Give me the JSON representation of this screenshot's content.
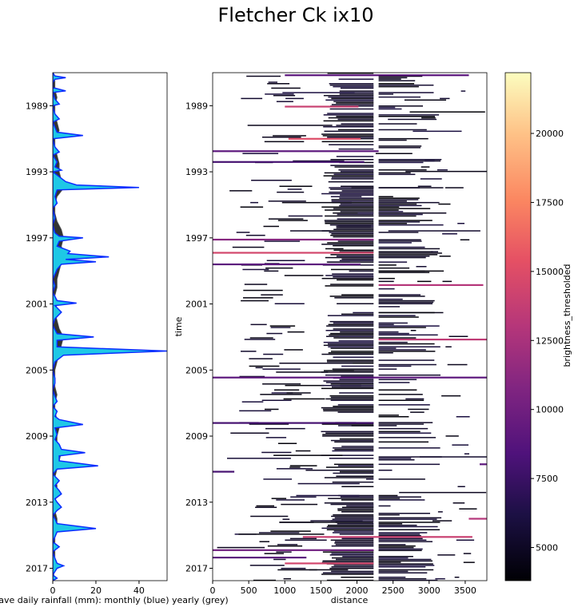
{
  "title": "Fletcher Ck ix10",
  "chart_data": [
    {
      "type": "area",
      "panel": "rainfall",
      "xlabel": "ave daily rainfall (mm): monthly (blue) yearly (grey)",
      "xlim": [
        0,
        53
      ],
      "xticks": [
        0,
        20,
        40
      ],
      "ylim": [
        1987.0,
        2017.75
      ],
      "yticks": [
        1989,
        1993,
        1997,
        2001,
        2005,
        2009,
        2013,
        2017
      ],
      "series": [
        {
          "name": "monthly",
          "color": "#0a2cff",
          "fill": "#1ec8e6",
          "points": [
            [
              1987.0,
              0
            ],
            [
              1987.2,
              1
            ],
            [
              1987.3,
              6
            ],
            [
              1987.4,
              1
            ],
            [
              1987.6,
              0
            ],
            [
              1987.9,
              0
            ],
            [
              1988.1,
              6
            ],
            [
              1988.2,
              0
            ],
            [
              1988.6,
              1
            ],
            [
              1988.9,
              3
            ],
            [
              1989.0,
              0
            ],
            [
              1989.5,
              1
            ],
            [
              1989.8,
              3
            ],
            [
              1990.0,
              0
            ],
            [
              1990.6,
              2
            ],
            [
              1990.8,
              14
            ],
            [
              1991.0,
              0
            ],
            [
              1991.5,
              1
            ],
            [
              1991.8,
              3
            ],
            [
              1992.0,
              0
            ],
            [
              1992.4,
              2
            ],
            [
              1992.7,
              1
            ],
            [
              1992.9,
              4
            ],
            [
              1993.0,
              0
            ],
            [
              1993.3,
              3
            ],
            [
              1993.6,
              6
            ],
            [
              1993.8,
              11
            ],
            [
              1993.95,
              40
            ],
            [
              1994.1,
              2
            ],
            [
              1994.5,
              1
            ],
            [
              1994.9,
              2
            ],
            [
              1995.2,
              0
            ],
            [
              1995.8,
              1
            ],
            [
              1996.2,
              0
            ],
            [
              1996.7,
              1
            ],
            [
              1996.9,
              3
            ],
            [
              1997.0,
              14
            ],
            [
              1997.2,
              3
            ],
            [
              1997.5,
              2
            ],
            [
              1997.8,
              8
            ],
            [
              1997.95,
              7
            ],
            [
              1998.15,
              26
            ],
            [
              1998.3,
              6
            ],
            [
              1998.45,
              20
            ],
            [
              1998.6,
              4
            ],
            [
              1998.9,
              2
            ],
            [
              1999.5,
              0
            ],
            [
              1999.9,
              1
            ],
            [
              2000.3,
              0
            ],
            [
              2000.8,
              2
            ],
            [
              2000.95,
              11
            ],
            [
              2001.1,
              1
            ],
            [
              2001.5,
              4
            ],
            [
              2001.9,
              1
            ],
            [
              2002.3,
              0
            ],
            [
              2002.8,
              2
            ],
            [
              2003.0,
              19
            ],
            [
              2003.2,
              2
            ],
            [
              2003.6,
              2
            ],
            [
              2003.85,
              53
            ],
            [
              2004.1,
              5
            ],
            [
              2004.5,
              1
            ],
            [
              2005.0,
              0
            ],
            [
              2005.5,
              1
            ],
            [
              2005.8,
              1
            ],
            [
              2006.2,
              0
            ],
            [
              2006.6,
              1
            ],
            [
              2006.9,
              2
            ],
            [
              2007.2,
              0
            ],
            [
              2007.5,
              2
            ],
            [
              2007.8,
              1
            ],
            [
              2008.0,
              3
            ],
            [
              2008.3,
              14
            ],
            [
              2008.5,
              1
            ],
            [
              2008.9,
              2
            ],
            [
              2009.2,
              1
            ],
            [
              2009.5,
              3
            ],
            [
              2009.8,
              4
            ],
            [
              2010.0,
              15
            ],
            [
              2010.2,
              3
            ],
            [
              2010.5,
              3
            ],
            [
              2010.8,
              21
            ],
            [
              2011.0,
              2
            ],
            [
              2011.3,
              0
            ],
            [
              2011.7,
              3
            ],
            [
              2012.0,
              1
            ],
            [
              2012.3,
              3
            ],
            [
              2012.5,
              4
            ],
            [
              2012.8,
              1
            ],
            [
              2013.0,
              2
            ],
            [
              2013.3,
              4
            ],
            [
              2013.5,
              2
            ],
            [
              2013.8,
              0
            ],
            [
              2014.0,
              1
            ],
            [
              2014.3,
              2
            ],
            [
              2014.6,
              20
            ],
            [
              2014.8,
              2
            ],
            [
              2015.1,
              1
            ],
            [
              2015.4,
              0
            ],
            [
              2015.7,
              3
            ],
            [
              2016.0,
              0
            ],
            [
              2016.4,
              1
            ],
            [
              2016.7,
              2
            ],
            [
              2016.85,
              5
            ],
            [
              2017.0,
              2
            ],
            [
              2017.2,
              1
            ],
            [
              2017.4,
              0
            ],
            [
              2017.6,
              2
            ],
            [
              2017.75,
              0
            ]
          ]
        },
        {
          "name": "yearly",
          "color": "#555555",
          "fill": "#333333",
          "points": [
            [
              1987.0,
              0
            ],
            [
              1987.5,
              1
            ],
            [
              1988.0,
              1
            ],
            [
              1988.5,
              2
            ],
            [
              1989.0,
              1
            ],
            [
              1989.5,
              1
            ],
            [
              1990.0,
              2
            ],
            [
              1990.5,
              3
            ],
            [
              1991.0,
              1
            ],
            [
              1991.5,
              1
            ],
            [
              1992.0,
              2
            ],
            [
              1992.5,
              3
            ],
            [
              1993.0,
              3
            ],
            [
              1993.5,
              4
            ],
            [
              1994.0,
              5
            ],
            [
              1994.5,
              2
            ],
            [
              1995.0,
              1
            ],
            [
              1995.5,
              1
            ],
            [
              1996.0,
              2
            ],
            [
              1996.5,
              4
            ],
            [
              1997.0,
              5
            ],
            [
              1997.5,
              4
            ],
            [
              1998.0,
              5
            ],
            [
              1998.5,
              4
            ],
            [
              1999.0,
              3
            ],
            [
              1999.5,
              2
            ],
            [
              2000.0,
              2
            ],
            [
              2000.5,
              1
            ],
            [
              2001.0,
              2
            ],
            [
              2001.5,
              1
            ],
            [
              2002.0,
              2
            ],
            [
              2002.5,
              3
            ],
            [
              2003.0,
              5
            ],
            [
              2003.5,
              4
            ],
            [
              2004.0,
              3
            ],
            [
              2004.5,
              2
            ],
            [
              2005.0,
              1
            ],
            [
              2005.5,
              1
            ],
            [
              2006.0,
              1
            ],
            [
              2006.5,
              2
            ],
            [
              2007.0,
              1
            ],
            [
              2007.5,
              1
            ],
            [
              2008.0,
              2
            ],
            [
              2008.5,
              3
            ],
            [
              2009.0,
              2
            ],
            [
              2009.5,
              2
            ],
            [
              2010.0,
              4
            ],
            [
              2010.5,
              3
            ],
            [
              2011.0,
              2
            ],
            [
              2011.5,
              1
            ],
            [
              2012.0,
              2
            ],
            [
              2012.5,
              2
            ],
            [
              2013.0,
              1
            ],
            [
              2013.5,
              1
            ],
            [
              2014.0,
              2
            ],
            [
              2014.5,
              2
            ],
            [
              2015.0,
              1
            ],
            [
              2015.5,
              1
            ],
            [
              2016.0,
              1
            ],
            [
              2016.5,
              1
            ],
            [
              2017.0,
              1
            ],
            [
              2017.75,
              0
            ]
          ]
        }
      ]
    },
    {
      "type": "heatmap",
      "panel": "time-distance",
      "xlabel": "distance",
      "ylabel": "time",
      "xlim": [
        0,
        3800
      ],
      "xticks": [
        0,
        500,
        1000,
        1500,
        2000,
        2500,
        3000,
        3500
      ],
      "ylim": [
        1987.0,
        2017.75
      ],
      "yticks": [
        1989,
        1993,
        1997,
        2001,
        2005,
        2009,
        2013,
        2017
      ],
      "colormap": "magma",
      "gap_distance": [
        2230,
        2300
      ],
      "band_density": [
        [
          1987.0,
          1990.5,
          0.45
        ],
        [
          1990.5,
          1992.8,
          0.2
        ],
        [
          1992.8,
          1998.5,
          0.6
        ],
        [
          1998.5,
          2002.0,
          0.35
        ],
        [
          2002.0,
          2006.0,
          0.5
        ],
        [
          2006.0,
          2009.0,
          0.4
        ],
        [
          2009.0,
          2012.5,
          0.2
        ],
        [
          2012.5,
          2017.75,
          0.6
        ]
      ],
      "highlight_rows": [
        {
          "time": 1987.15,
          "x0": 1000,
          "x1": 3550,
          "value": 9000
        },
        {
          "time": 1989.05,
          "x0": 1000,
          "x1": 2020,
          "value": 14000
        },
        {
          "time": 1991.0,
          "x0": 1050,
          "x1": 2050,
          "value": 15000
        },
        {
          "time": 1991.75,
          "x0": 0,
          "x1": 2300,
          "value": 9000
        },
        {
          "time": 1992.4,
          "x0": 0,
          "x1": 2100,
          "value": 8000
        },
        {
          "time": 1997.1,
          "x0": 0,
          "x1": 2230,
          "value": 11000
        },
        {
          "time": 1997.9,
          "x0": 0,
          "x1": 2230,
          "value": 14500
        },
        {
          "time": 1998.6,
          "x0": 0,
          "x1": 2050,
          "value": 9000
        },
        {
          "time": 1999.85,
          "x0": 2300,
          "x1": 3750,
          "value": 13000
        },
        {
          "time": 2003.15,
          "x0": 2300,
          "x1": 3800,
          "value": 13500
        },
        {
          "time": 2005.45,
          "x0": 0,
          "x1": 3800,
          "value": 9000
        },
        {
          "time": 2008.2,
          "x0": 0,
          "x1": 2230,
          "value": 8000
        },
        {
          "time": 2010.7,
          "x0": 3700,
          "x1": 3800,
          "value": 9000
        },
        {
          "time": 2011.15,
          "x0": 0,
          "x1": 300,
          "value": 8000
        },
        {
          "time": 2014.0,
          "x0": 3550,
          "x1": 3800,
          "value": 13000
        },
        {
          "time": 2015.1,
          "x0": 1250,
          "x1": 3600,
          "value": 14000
        },
        {
          "time": 2015.9,
          "x0": 0,
          "x1": 2230,
          "value": 10000
        },
        {
          "time": 2016.35,
          "x0": 0,
          "x1": 1300,
          "value": 9000
        },
        {
          "time": 2016.7,
          "x0": 1000,
          "x1": 2230,
          "value": 14500
        }
      ]
    },
    {
      "type": "colorbar",
      "label": "brightness_thresholded",
      "colormap": "magma",
      "range": [
        3800,
        22200
      ],
      "ticks": [
        5000,
        7500,
        10000,
        12500,
        15000,
        17500,
        20000
      ]
    }
  ]
}
